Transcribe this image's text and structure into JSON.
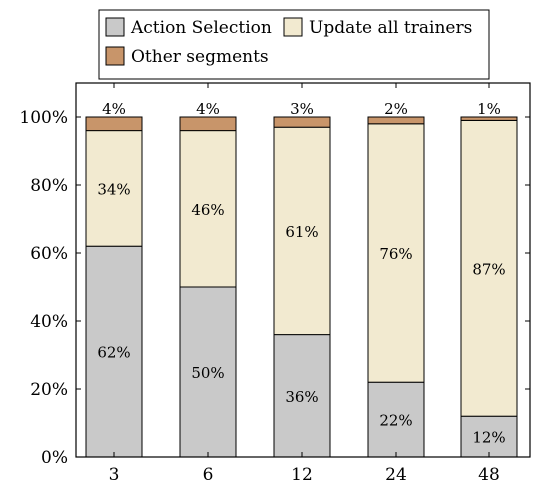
{
  "chart_data": {
    "type": "bar",
    "stacked": true,
    "categories": [
      "3",
      "6",
      "12",
      "24",
      "48"
    ],
    "series": [
      {
        "name": "Action Selection",
        "values": [
          62,
          50,
          36,
          22,
          12
        ],
        "labels": [
          "62%",
          "50%",
          "36%",
          "22%",
          "12%"
        ],
        "color": "#c9c9c9"
      },
      {
        "name": "Update all trainers",
        "values": [
          34,
          46,
          61,
          76,
          87
        ],
        "labels": [
          "34%",
          "46%",
          "61%",
          "76%",
          "87%"
        ],
        "color": "#f2ead0"
      },
      {
        "name": "Other segments",
        "values": [
          4,
          4,
          3,
          2,
          1
        ],
        "labels": [
          "4%",
          "4%",
          "3%",
          "2%",
          "1%"
        ],
        "color": "#c8956a"
      }
    ],
    "ylim": [
      0,
      110
    ],
    "yticks": [
      0,
      20,
      40,
      60,
      80,
      100
    ],
    "ytick_labels": [
      "0%",
      "20%",
      "40%",
      "60%",
      "80%",
      "100%"
    ],
    "xlabel": "",
    "ylabel": "",
    "grid": false,
    "legend_position": "top"
  }
}
